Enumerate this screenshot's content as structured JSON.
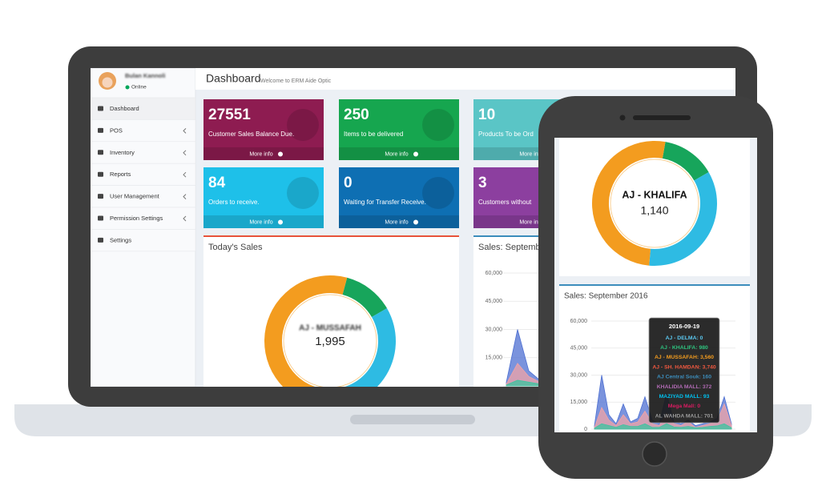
{
  "user": {
    "name": "Bulan Kannoli",
    "status": "Online"
  },
  "menu": [
    "Dashboard",
    "POS",
    "Inventory",
    "Reports",
    "User Management",
    "Permission Settings",
    "Settings"
  ],
  "header": {
    "title": "Dashboard",
    "subtitle": "Welcome to ERM Aide Optic"
  },
  "more_info": "More info",
  "tiles": [
    {
      "value": 27551,
      "text": "Customer Sales Balance Due.",
      "color": "#8e1c51"
    },
    {
      "value": 250,
      "text": "Items to be delivered",
      "color": "#16a64f"
    },
    {
      "value": 10,
      "text": "Products To be Ord",
      "color": "#5ac5c6"
    },
    {
      "value": 84,
      "text": "Orders to receive.",
      "color": "#1ec0e9"
    },
    {
      "value": 0,
      "text": "Waiting for Transfer Receive.",
      "color": "#0e6fb3"
    },
    {
      "value": 3,
      "text": "Customers without",
      "color": "#8c3f9f"
    }
  ],
  "today_sales": {
    "title": "Today's Sales",
    "label": "AJ - MUSSAFAH",
    "value": "1,995",
    "segments": [
      {
        "color": "#17a55b",
        "value": 45
      },
      {
        "color": "#2ebbe3",
        "value": 130
      },
      {
        "color": "#f39c1f",
        "value": 185
      }
    ]
  },
  "sales_chart": {
    "title": "Sales: September 2016",
    "ylim": [
      0,
      60000
    ],
    "yticks": [
      {
        "value": 60000,
        "label": "60,000"
      },
      {
        "value": 45000,
        "label": "45,000"
      },
      {
        "value": 30000,
        "label": "30,000"
      },
      {
        "value": 15000,
        "label": "15,000"
      },
      0
    ],
    "series": [
      {
        "color": "#4d6fd1",
        "values": [
          2000,
          30000,
          8000,
          3000,
          14000,
          4000,
          6000,
          18000,
          5000,
          3000,
          20000,
          4000,
          3000,
          5000,
          2000,
          3000,
          4000,
          6000,
          18000,
          3000
        ]
      },
      {
        "color": "#f2a3a6",
        "values": [
          1000,
          12000,
          5000,
          2000,
          8000,
          3000,
          4000,
          10000,
          3000,
          2000,
          9000,
          3000,
          2000,
          4000,
          1000,
          2000,
          3000,
          4000,
          14000,
          2000
        ]
      },
      {
        "color": "#3cc4a0",
        "values": [
          500,
          3000,
          2000,
          1000,
          2500,
          1500,
          1500,
          3000,
          1000,
          1000,
          3000,
          1200,
          1000,
          1500,
          800,
          1000,
          1500,
          1800,
          3000,
          800
        ]
      }
    ]
  },
  "phone": {
    "donut": {
      "label": "AJ - KHALIFA",
      "value": "1,140",
      "segments": [
        {
          "color": "#17a55b",
          "value": 50
        },
        {
          "color": "#2ebbe3",
          "value": 125
        },
        {
          "color": "#f39c1f",
          "value": 185
        }
      ]
    },
    "tooltip": {
      "title": "2016-09-19",
      "rows": [
        {
          "text": "AJ - DELMA: 0",
          "color": "#5bc8f0"
        },
        {
          "text": "AJ - KHALIFA: 980",
          "color": "#2ec27e"
        },
        {
          "text": "AJ - MUSSAFAH: 3,560",
          "color": "#f39c1f"
        },
        {
          "text": "AJ - SH. HAMDAN: 3,740",
          "color": "#f0583f"
        },
        {
          "text": "AJ Central Souk: 160",
          "color": "#3c8dbc"
        },
        {
          "text": "KHALIDIA MALL: 372",
          "color": "#b06ab3"
        },
        {
          "text": "MAZIYAD MALL: 93",
          "color": "#00c0ef"
        },
        {
          "text": "Mega Mall: 0",
          "color": "#d81b60"
        },
        {
          "text": "AL WAHDA MALL: 701",
          "color": "#9a9a9a"
        }
      ]
    }
  }
}
